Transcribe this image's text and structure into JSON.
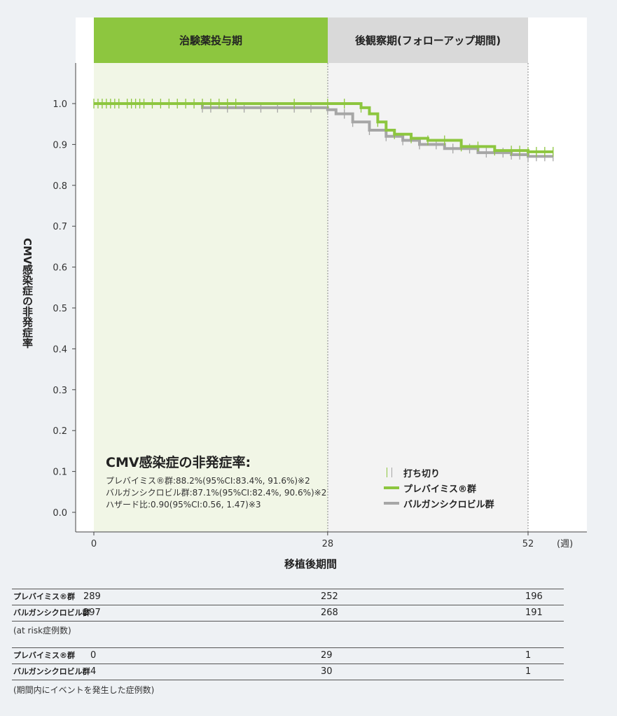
{
  "phases": {
    "treatment": "治験薬投与期",
    "followup": "後観察期(フォローアップ期間)"
  },
  "chart_data": {
    "type": "line",
    "ylabel": "CMV感染症の非発症率",
    "xlabel": "移植後期間",
    "x_unit": "(週)",
    "xlim": [
      0,
      52
    ],
    "ylim": [
      0.0,
      1.0
    ],
    "x_ticks": [
      "0",
      "28",
      "52"
    ],
    "y_ticks": [
      "0.0",
      "0.1",
      "0.2",
      "0.3",
      "0.4",
      "0.5",
      "0.6",
      "0.7",
      "0.8",
      "0.9",
      "1.0"
    ],
    "series": [
      {
        "name": "プレバイミス®群",
        "color": "#8dc63f",
        "points": [
          [
            0,
            1.0
          ],
          [
            31,
            1.0
          ],
          [
            32,
            0.99
          ],
          [
            33,
            0.975
          ],
          [
            34,
            0.955
          ],
          [
            35,
            0.935
          ],
          [
            36,
            0.925
          ],
          [
            38,
            0.915
          ],
          [
            40,
            0.91
          ],
          [
            44,
            0.895
          ],
          [
            48,
            0.885
          ],
          [
            52,
            0.882
          ],
          [
            55,
            0.882
          ]
        ],
        "censor_x": [
          0,
          0.5,
          1,
          1.5,
          2,
          2.5,
          3,
          4,
          4.5,
          5,
          5.5,
          6,
          7,
          8,
          9,
          10,
          11,
          12,
          13,
          14,
          15,
          16,
          17,
          24,
          28,
          30,
          32,
          34,
          36,
          38,
          40,
          42,
          44,
          46,
          48,
          50,
          51,
          52,
          53,
          54,
          55
        ]
      },
      {
        "name": "バルガンシクロビル群",
        "color": "#a6a6a6",
        "points": [
          [
            0,
            1.0
          ],
          [
            12,
            1.0
          ],
          [
            13,
            0.99
          ],
          [
            27,
            0.99
          ],
          [
            28,
            0.985
          ],
          [
            29,
            0.975
          ],
          [
            31,
            0.955
          ],
          [
            33,
            0.935
          ],
          [
            35,
            0.92
          ],
          [
            37,
            0.91
          ],
          [
            39,
            0.9
          ],
          [
            42,
            0.89
          ],
          [
            46,
            0.88
          ],
          [
            50,
            0.875
          ],
          [
            52,
            0.871
          ],
          [
            55,
            0.871
          ]
        ],
        "censor_x": [
          13,
          14,
          16,
          18,
          20,
          22,
          24,
          26,
          28,
          30,
          31,
          33,
          35,
          37,
          39,
          41,
          43,
          45,
          47,
          49,
          50,
          51,
          52,
          53,
          54,
          55
        ]
      }
    ],
    "censor_legend": "打ち切り",
    "stats": {
      "title": "CMV感染症の非発症率:",
      "lines": [
        "プレバイミス®群:88.2%(95%CI:83.4%, 91.6%)※2",
        "バルガンシクロビル群:87.1%(95%CI:82.4%, 90.6%)※2",
        "ハザード比:0.90(95%CI:0.56, 1.47)※3"
      ]
    }
  },
  "risk_table": {
    "rows": [
      {
        "label": "プレバイミス®群",
        "v0": "289",
        "v1": "252",
        "v2": "196"
      },
      {
        "label": "バルガンシクロビル群",
        "v0": "297",
        "v1": "268",
        "v2": "191"
      }
    ],
    "note": "(at risk症例数)"
  },
  "event_table": {
    "rows": [
      {
        "label": "プレバイミス®群",
        "v0": "0",
        "v1": "29",
        "v2": "1"
      },
      {
        "label": "バルガンシクロビル群",
        "v0": "4",
        "v1": "30",
        "v2": "1"
      }
    ],
    "note": "(期間内にイベントを発生した症例数)"
  }
}
